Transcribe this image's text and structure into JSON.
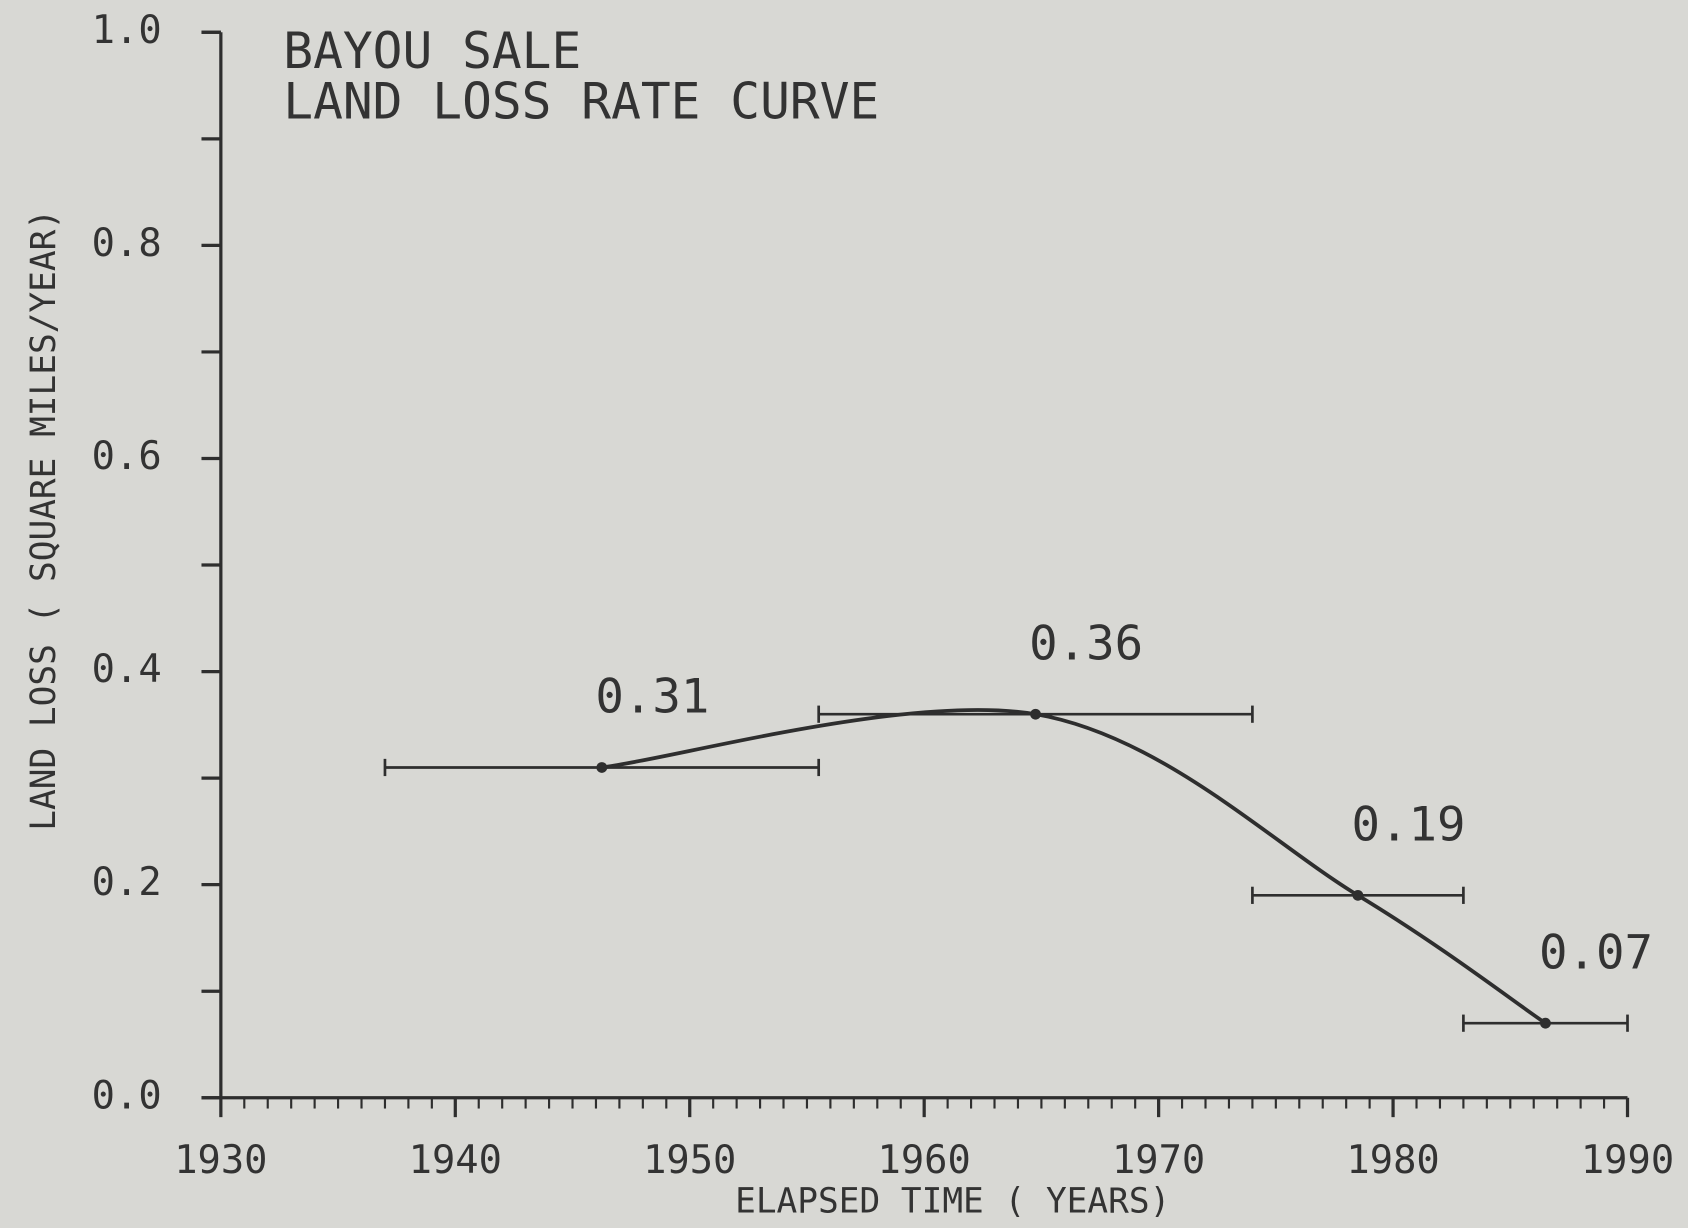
{
  "chart_data": {
    "type": "line",
    "title": [
      "BAYOU SALE",
      "LAND LOSS RATE CURVE"
    ],
    "xlabel": "ELAPSED TIME ( YEARS)",
    "ylabel": "LAND LOSS ( SQUARE MILES/YEAR)",
    "x": [
      1946.25,
      1964.75,
      1978.5,
      1986.5
    ],
    "xerr": [
      9.25,
      9.25,
      4.5,
      3.5
    ],
    "series": [
      {
        "name": "land loss rate",
        "color": "#2e2e2e",
        "values": [
          0.31,
          0.36,
          0.19,
          0.07
        ]
      }
    ],
    "xlim": [
      1930,
      1990
    ],
    "xticks": [
      1930,
      1940,
      1950,
      1960,
      1970,
      1980,
      1990
    ],
    "ylim": [
      0,
      1
    ],
    "yticks": [
      {
        "value": 0,
        "label": "0.0"
      },
      {
        "value": 0.2,
        "label": "0.2"
      },
      {
        "value": 0.4,
        "label": "0.4"
      },
      {
        "value": 0.6,
        "label": "0.6"
      },
      {
        "value": 0.8,
        "label": "0.8"
      },
      {
        "value": 1,
        "label": "1.0"
      }
    ]
  }
}
